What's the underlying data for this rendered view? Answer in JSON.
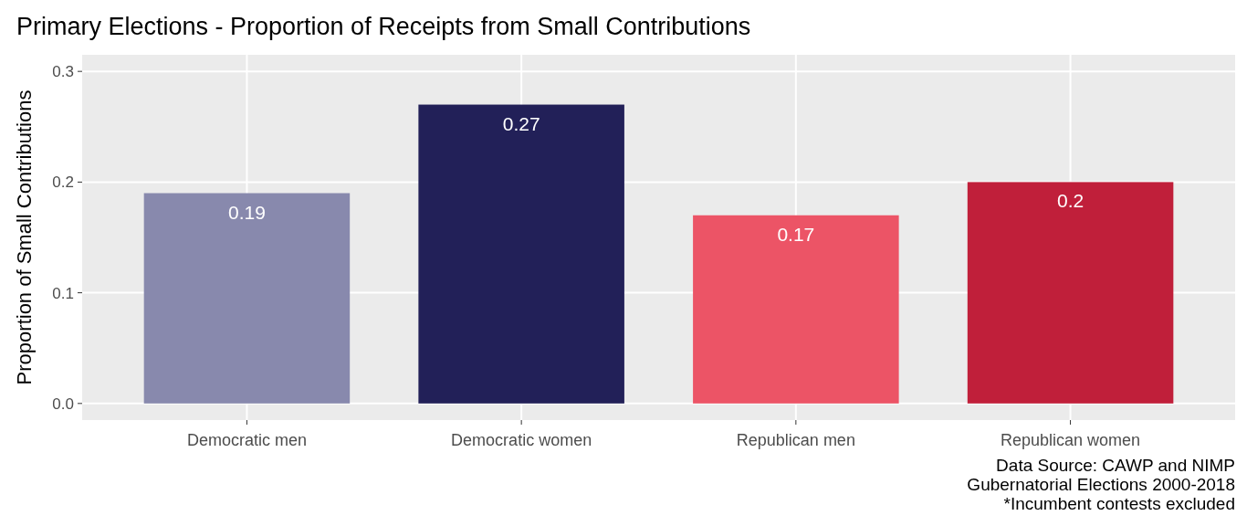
{
  "chart_data": {
    "type": "bar",
    "title": "Primary Elections - Proportion of Receipts from Small Contributions",
    "ylabel": "Proportion of Small Contributions",
    "categories": [
      "Democratic men",
      "Democratic women",
      "Republican men",
      "Republican women"
    ],
    "values": [
      0.19,
      0.27,
      0.17,
      0.2
    ],
    "colors": [
      "#8889ad",
      "#222058",
      "#ec5466",
      "#c01f3a"
    ],
    "ylim": [
      -0.015,
      0.315
    ],
    "yticks": [
      {
        "value": 0,
        "label": "0.0"
      },
      0.1,
      0.2,
      0.3
    ],
    "grid": true,
    "data_labels": true,
    "value_labels": [
      "0.19",
      "0.27",
      "0.17",
      "0.2"
    ],
    "annotations": [
      "Data Source: CAWP and NIMP",
      "Gubernatorial Elections 2000-2018",
      "*Incumbent contests excluded"
    ]
  }
}
